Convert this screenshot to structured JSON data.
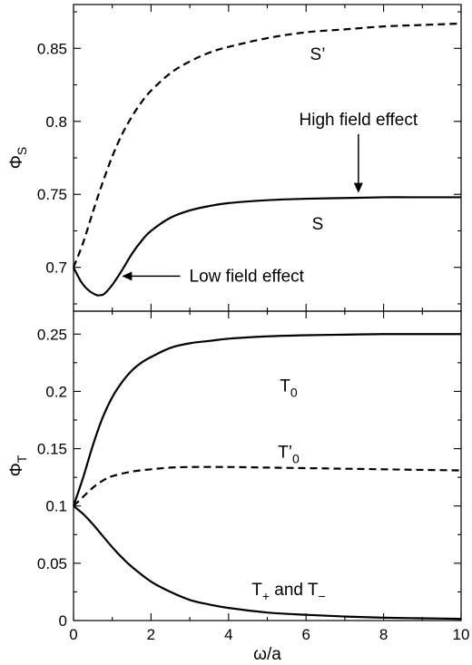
{
  "chart_data": [
    {
      "type": "line",
      "ylabel": "Φ",
      "ylabel_sub": "S",
      "xlim": [
        0,
        10
      ],
      "ylim": [
        0.67,
        0.88
      ],
      "yticks": [
        0.7,
        0.75,
        0.8,
        0.85
      ],
      "ytick_labels": [
        "0.7",
        "0.75",
        "0.8",
        "0.85"
      ],
      "xticks": [
        0,
        2,
        4,
        6,
        8,
        10
      ],
      "grid": false,
      "legend": "none",
      "series": [
        {
          "name": "S'",
          "style": "dashed",
          "x": [
            0,
            0.25,
            0.5,
            0.75,
            1,
            1.25,
            1.5,
            1.75,
            2,
            2.5,
            3,
            3.5,
            4,
            5,
            6,
            7,
            8,
            9,
            10
          ],
          "y": [
            0.7,
            0.717,
            0.738,
            0.758,
            0.776,
            0.791,
            0.803,
            0.813,
            0.821,
            0.833,
            0.841,
            0.847,
            0.851,
            0.857,
            0.861,
            0.863,
            0.865,
            0.866,
            0.867
          ]
        },
        {
          "name": "S",
          "style": "solid",
          "x": [
            0,
            0.2,
            0.4,
            0.6,
            0.7,
            0.8,
            1,
            1.25,
            1.5,
            1.75,
            2,
            2.5,
            3,
            3.5,
            4,
            5,
            6,
            7,
            8,
            9,
            10
          ],
          "y": [
            0.7,
            0.69,
            0.684,
            0.681,
            0.681,
            0.682,
            0.688,
            0.698,
            0.709,
            0.718,
            0.725,
            0.734,
            0.739,
            0.742,
            0.744,
            0.746,
            0.747,
            0.7475,
            0.748,
            0.748,
            0.748
          ]
        }
      ],
      "curve_labels": [
        {
          "text": "S’",
          "x": 6.3,
          "y": 0.842
        },
        {
          "text": "S",
          "x": 6.3,
          "y": 0.726
        }
      ],
      "annotations": [
        {
          "text": "High field effect",
          "x": 7.35,
          "y": 0.79,
          "arrow_to": [
            7.35,
            0.751
          ]
        },
        {
          "text": "Low field effect",
          "x": 2.8,
          "y": 0.694,
          "arrow_to": [
            1.25,
            0.694
          ]
        }
      ]
    },
    {
      "type": "line",
      "xlabel": "ω/a",
      "ylabel": "Φ",
      "ylabel_sub": "T",
      "xlim": [
        0,
        10
      ],
      "ylim": [
        0,
        0.27
      ],
      "yticks": [
        0,
        0.05,
        0.1,
        0.15,
        0.2,
        0.25
      ],
      "ytick_labels": [
        "0",
        "0.05",
        "0.1",
        "0.15",
        "0.2",
        "0.25"
      ],
      "xticks": [
        0,
        2,
        4,
        6,
        8,
        10
      ],
      "xtick_labels": [
        "0",
        "2",
        "4",
        "6",
        "8",
        "10"
      ],
      "grid": false,
      "legend": "none",
      "series": [
        {
          "name": "T0",
          "style": "solid",
          "x": [
            0,
            0.25,
            0.5,
            0.75,
            1,
            1.25,
            1.5,
            1.75,
            2,
            2.5,
            3,
            3.5,
            4,
            5,
            6,
            7,
            8,
            9,
            10
          ],
          "y": [
            0.1,
            0.125,
            0.153,
            0.177,
            0.195,
            0.208,
            0.218,
            0.225,
            0.23,
            0.238,
            0.242,
            0.244,
            0.246,
            0.248,
            0.249,
            0.2495,
            0.25,
            0.25,
            0.25
          ]
        },
        {
          "name": "T'0",
          "style": "dashed",
          "x": [
            0,
            0.25,
            0.5,
            0.75,
            1,
            1.5,
            2,
            2.5,
            3,
            4,
            5,
            6,
            7,
            8,
            9,
            10
          ],
          "y": [
            0.1,
            0.108,
            0.116,
            0.122,
            0.126,
            0.13,
            0.132,
            0.1335,
            0.134,
            0.134,
            0.1335,
            0.133,
            0.1325,
            0.132,
            0.1315,
            0.131
          ]
        },
        {
          "name": "T+ and T−",
          "style": "solid",
          "x": [
            0,
            0.25,
            0.5,
            0.75,
            1,
            1.25,
            1.5,
            2,
            2.5,
            3,
            3.5,
            4,
            5,
            6,
            7,
            8,
            9,
            10
          ],
          "y": [
            0.1,
            0.093,
            0.084,
            0.074,
            0.064,
            0.055,
            0.047,
            0.034,
            0.025,
            0.018,
            0.014,
            0.011,
            0.007,
            0.005,
            0.0035,
            0.0025,
            0.002,
            0.0015
          ]
        }
      ],
      "curve_labels": [
        {
          "text": "T",
          "sub": "0",
          "x": 5.55,
          "y": 0.2
        },
        {
          "text": "T’",
          "sub": "0",
          "x": 5.55,
          "y": 0.142
        },
        {
          "text": "T",
          "sub": "+",
          "text2": " and T",
          "sub2": "−",
          "x": 5.55,
          "y": 0.022
        }
      ]
    }
  ]
}
